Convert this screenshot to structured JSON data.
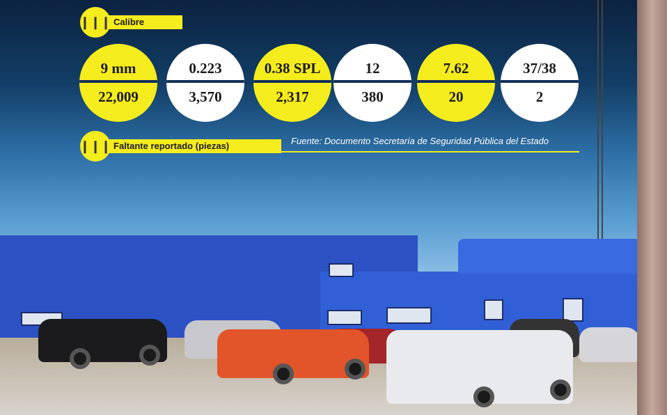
{
  "header": {
    "title": "Calibre",
    "icon": "bullets-icon"
  },
  "calibers": [
    {
      "caliber": "9 mm",
      "missing": "22,009",
      "color": "#f5ec1d"
    },
    {
      "caliber": "0.223",
      "missing": "3,570",
      "color": "#ffffff"
    },
    {
      "caliber": "0.38 SPL",
      "missing": "2,317",
      "color": "#f5ec1d"
    },
    {
      "caliber": "12",
      "missing": "380",
      "color": "#ffffff"
    },
    {
      "caliber": "7.62",
      "missing": "20",
      "color": "#f5ec1d"
    },
    {
      "caliber": "37/38",
      "missing": "2",
      "color": "#ffffff"
    }
  ],
  "footer": {
    "label": "Faltante reportado (piezas)",
    "icon": "ammo-row-icon",
    "source": "Fuente: Documento Secretaría de Seguridad Pública del Estado"
  },
  "colors": {
    "accent": "#f5ec1d",
    "building": "#2c52c4"
  }
}
